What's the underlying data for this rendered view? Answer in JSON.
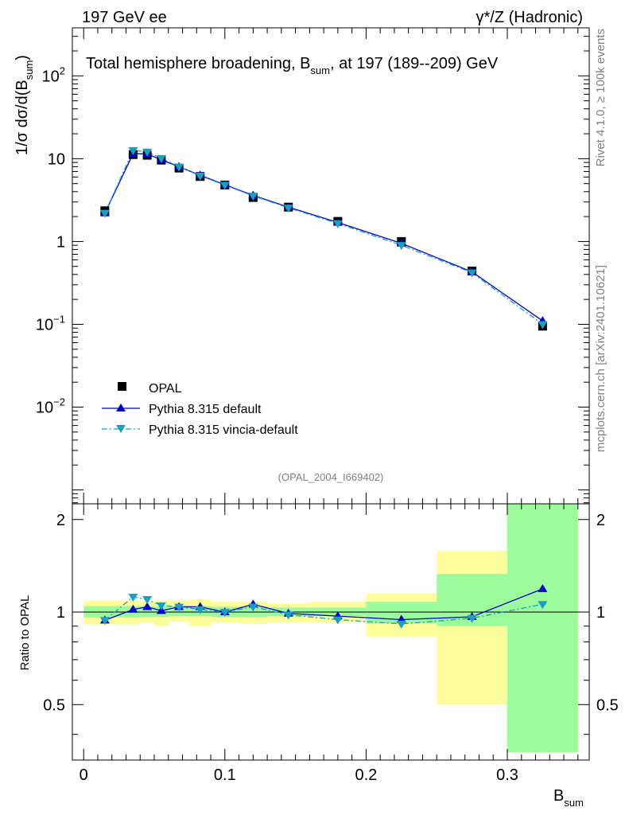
{
  "header": {
    "left": "197 GeV ee",
    "right": "γ*/Z (Hadronic)"
  },
  "side": {
    "rivet": "Rivet 4.1.0, ≥ 100k events",
    "mcplots": "mcplots.cern.ch [arXiv:2401.10621]"
  },
  "chart_data": {
    "type": "line",
    "title": "Total hemisphere broadening, B_sum, at 197 (189--209) GeV",
    "title_parts": {
      "a": "Total hemisphere broadening, B",
      "sub": "sum",
      "b": ", at 197 (189--209) GeV"
    },
    "analysis_id": "(OPAL_2004_I669402)",
    "xlabel": "B_sum",
    "xlabel_parts": {
      "main": "B",
      "sub": "sum"
    },
    "ylabel": "1/σ dσ/d(B_sum)",
    "ylabel_parts": {
      "a": "1/σ   dσ/d(B",
      "sub": "sum",
      "b": ")"
    },
    "ratio_ylabel": "Ratio to OPAL",
    "xlim": [
      -0.008,
      0.358
    ],
    "ylim": [
      0.00068,
      380
    ],
    "ratio_ylim": [
      0.33,
      2.25
    ],
    "x_ticks": [
      0,
      0.1,
      0.2,
      0.3
    ],
    "x_tick_labels": [
      "0",
      "0.1",
      "0.2",
      "0.3"
    ],
    "y_tick_labels": [
      {
        "v": 0.01,
        "base": "10",
        "exp": "−2"
      },
      {
        "v": 0.1,
        "base": "10",
        "exp": "−1"
      },
      {
        "v": 1,
        "base": "1",
        "exp": ""
      },
      {
        "v": 10,
        "base": "10",
        "exp": ""
      },
      {
        "v": 100,
        "base": "10",
        "exp": "2"
      }
    ],
    "ratio_y_ticks": [
      0.5,
      1,
      2
    ],
    "ratio_y_tick_labels": [
      "0.5",
      "1",
      "2"
    ],
    "bins": [
      [
        0.0,
        0.03
      ],
      [
        0.03,
        0.04
      ],
      [
        0.04,
        0.05
      ],
      [
        0.05,
        0.06
      ],
      [
        0.06,
        0.075
      ],
      [
        0.075,
        0.09
      ],
      [
        0.09,
        0.11
      ],
      [
        0.11,
        0.13
      ],
      [
        0.13,
        0.16
      ],
      [
        0.16,
        0.2
      ],
      [
        0.2,
        0.25
      ],
      [
        0.25,
        0.3
      ],
      [
        0.3,
        0.35
      ]
    ],
    "x": [
      0.015,
      0.035,
      0.045,
      0.055,
      0.0675,
      0.0825,
      0.1,
      0.12,
      0.145,
      0.18,
      0.225,
      0.275,
      0.325
    ],
    "series": [
      {
        "name": "OPAL",
        "marker": "square",
        "color": "#000000",
        "values": [
          2.35,
          11.2,
          11.0,
          9.6,
          7.7,
          6.1,
          4.8,
          3.4,
          2.6,
          1.75,
          1.0,
          0.44,
          0.095
        ]
      },
      {
        "name": "Pythia 8.315 default",
        "marker": "triangle-up",
        "color": "#0000cc",
        "line": "solid",
        "values": [
          2.2,
          11.5,
          11.4,
          9.7,
          8.0,
          6.3,
          4.85,
          3.6,
          2.6,
          1.7,
          0.95,
          0.43,
          0.11
        ],
        "ratio": [
          0.94,
          1.02,
          1.04,
          1.01,
          1.04,
          1.04,
          1.0,
          1.06,
          0.99,
          0.97,
          0.945,
          0.965,
          1.19
        ]
      },
      {
        "name": "Pythia 8.315 vincia-default",
        "marker": "triangle-down",
        "color": "#1a9fbf",
        "line": "dashdot",
        "values": [
          2.2,
          12.6,
          12.1,
          10.1,
          8.0,
          6.2,
          4.8,
          3.55,
          2.55,
          1.65,
          0.9,
          0.42,
          0.1
        ],
        "ratio": [
          0.94,
          1.12,
          1.1,
          1.05,
          1.04,
          1.02,
          1.0,
          1.04,
          0.98,
          0.945,
          0.915,
          0.955,
          1.06
        ]
      }
    ],
    "ratio_bands": {
      "green": [
        [
          0.96,
          1.045
        ],
        [
          0.96,
          1.045
        ],
        [
          0.965,
          1.045
        ],
        [
          0.965,
          1.045
        ],
        [
          0.97,
          1.045
        ],
        [
          0.97,
          1.045
        ],
        [
          0.965,
          1.04
        ],
        [
          0.965,
          1.04
        ],
        [
          0.97,
          1.035
        ],
        [
          0.97,
          1.035
        ],
        [
          0.92,
          1.08
        ],
        [
          0.9,
          1.33
        ],
        [
          0.35,
          2.25
        ]
      ],
      "yellow": [
        [
          0.91,
          1.09
        ],
        [
          0.91,
          1.09
        ],
        [
          0.925,
          1.08
        ],
        [
          0.9,
          1.09
        ],
        [
          0.93,
          1.09
        ],
        [
          0.9,
          1.1
        ],
        [
          0.925,
          1.08
        ],
        [
          0.915,
          1.08
        ],
        [
          0.925,
          1.07
        ],
        [
          0.925,
          1.08
        ],
        [
          0.83,
          1.15
        ],
        [
          0.5,
          1.58
        ],
        [
          0.35,
          2.25
        ]
      ]
    }
  }
}
